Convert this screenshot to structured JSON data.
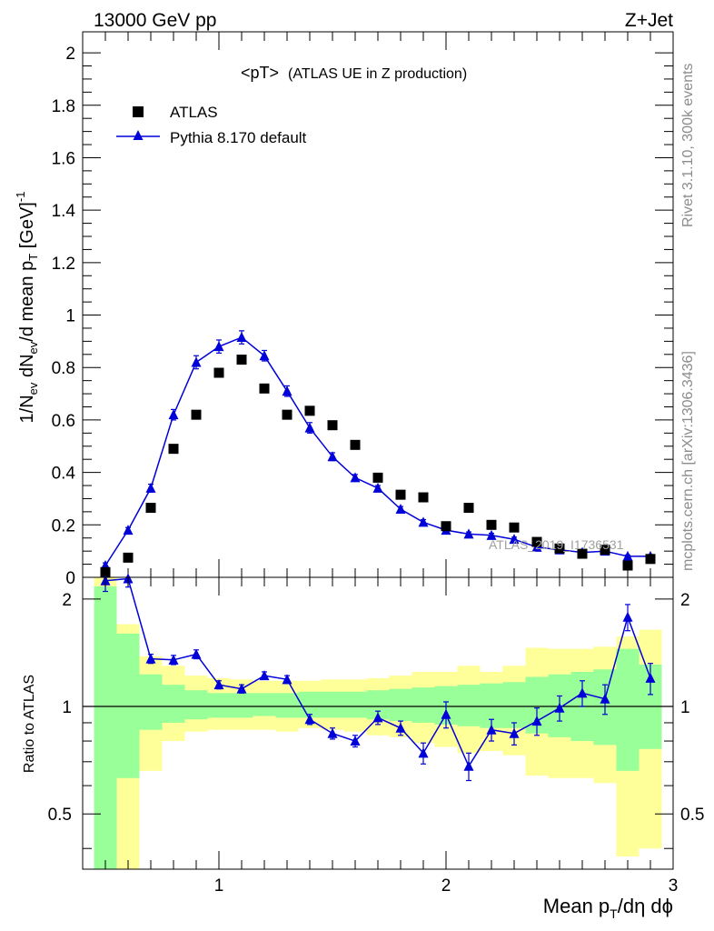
{
  "header": {
    "left": "13000 GeV pp",
    "right": "Z+Jet"
  },
  "side": {
    "top": "Rivet 3.1.10,  300k events",
    "bottom": "mcplots.cern.ch [arXiv:1306.3436]"
  },
  "watermark": "ATLAS_2019_I1736531",
  "colors": {
    "mc": "#0000d8",
    "data": "#000000",
    "band_outer": "#ffff99",
    "band_inner": "#99ff99"
  },
  "chart_data": [
    {
      "type": "scatter",
      "title": "<pT>",
      "subtitle": "(ATLAS UE in Z production)",
      "ylabel": "1/Nev dNev/d mean pT [GeV]-1",
      "xlim": [
        0.4,
        3.0
      ],
      "ylim": [
        0,
        2.08
      ],
      "yticks": [
        "0",
        "0.2",
        "0.4",
        "0.6",
        "0.8",
        "1",
        "1.2",
        "1.4",
        "1.6",
        "1.8",
        "2"
      ],
      "x": [
        0.5,
        0.6,
        0.7,
        0.8,
        0.9,
        1.0,
        1.1,
        1.2,
        1.3,
        1.4,
        1.5,
        1.6,
        1.7,
        1.8,
        1.9,
        2.0,
        2.1,
        2.2,
        2.3,
        2.4,
        2.5,
        2.6,
        2.7,
        2.8,
        2.9
      ],
      "series": [
        {
          "name": "ATLAS",
          "marker": "square",
          "values": [
            0.02,
            0.075,
            0.265,
            0.49,
            0.62,
            0.78,
            0.83,
            0.72,
            0.62,
            0.635,
            0.58,
            0.505,
            0.38,
            0.315,
            0.305,
            0.195,
            0.265,
            0.2,
            0.19,
            0.135,
            0.11,
            0.09,
            0.105,
            0.045,
            0.07
          ]
        },
        {
          "name": "Pythia 8.170 default",
          "marker": "triangle",
          "values": [
            0.045,
            0.18,
            0.34,
            0.62,
            0.82,
            0.88,
            0.915,
            0.845,
            0.71,
            0.57,
            0.46,
            0.38,
            0.34,
            0.26,
            0.21,
            0.18,
            0.165,
            0.16,
            0.145,
            0.115,
            0.105,
            0.095,
            0.1,
            0.08,
            0.08
          ],
          "errors": [
            0.01,
            0.01,
            0.015,
            0.02,
            0.025,
            0.025,
            0.025,
            0.02,
            0.02,
            0.02,
            0.015,
            0.012,
            0.01,
            0.01,
            0.01,
            0.008,
            0.008,
            0.008,
            0.008,
            0.007,
            0.006,
            0.006,
            0.006,
            0.005,
            0.005
          ]
        }
      ],
      "legend": "top-left"
    },
    {
      "type": "line",
      "ylabel": "Ratio to ATLAS",
      "xlabel": "Mean pT/dη dϕ",
      "xlim": [
        0.4,
        3.0
      ],
      "ylim": [
        0.35,
        2.3
      ],
      "xticks": [
        "1",
        "2",
        "3"
      ],
      "yticks": [
        "0.5",
        "1",
        "2"
      ],
      "x": [
        0.5,
        0.6,
        0.7,
        0.8,
        0.9,
        1.0,
        1.1,
        1.2,
        1.3,
        1.4,
        1.5,
        1.6,
        1.7,
        1.8,
        1.9,
        2.0,
        2.1,
        2.2,
        2.3,
        2.4,
        2.5,
        2.6,
        2.7,
        2.8,
        2.9
      ],
      "ratio": [
        2.25,
        2.28,
        1.36,
        1.35,
        1.4,
        1.15,
        1.12,
        1.22,
        1.19,
        0.92,
        0.84,
        0.8,
        0.93,
        0.87,
        0.74,
        0.95,
        0.68,
        0.86,
        0.84,
        0.91,
        0.99,
        1.09,
        1.05,
        1.78,
        1.2
      ],
      "ratio_err": [
        0.15,
        0.12,
        0.04,
        0.04,
        0.04,
        0.03,
        0.03,
        0.03,
        0.03,
        0.03,
        0.03,
        0.03,
        0.04,
        0.04,
        0.05,
        0.08,
        0.06,
        0.06,
        0.06,
        0.08,
        0.08,
        0.09,
        0.1,
        0.15,
        0.12
      ],
      "band_outer": [
        [
          0.3,
          2.3
        ],
        [
          0.3,
          1.7
        ],
        [
          0.66,
          1.38
        ],
        [
          0.8,
          1.3
        ],
        [
          0.85,
          1.22
        ],
        [
          0.86,
          1.2
        ],
        [
          0.86,
          1.19
        ],
        [
          0.86,
          1.18
        ],
        [
          0.85,
          1.18
        ],
        [
          0.87,
          1.18
        ],
        [
          0.86,
          1.19
        ],
        [
          0.85,
          1.19
        ],
        [
          0.83,
          1.2
        ],
        [
          0.82,
          1.22
        ],
        [
          0.79,
          1.25
        ],
        [
          0.77,
          1.25
        ],
        [
          0.74,
          1.3
        ],
        [
          0.75,
          1.25
        ],
        [
          0.73,
          1.3
        ],
        [
          0.64,
          1.46
        ],
        [
          0.63,
          1.45
        ],
        [
          0.63,
          1.45
        ],
        [
          0.61,
          1.47
        ],
        [
          0.38,
          1.57
        ],
        [
          0.4,
          1.64
        ]
      ],
      "band_inner": [
        [
          0.3,
          2.17
        ],
        [
          0.63,
          1.6
        ],
        [
          0.86,
          1.23
        ],
        [
          0.9,
          1.15
        ],
        [
          0.92,
          1.11
        ],
        [
          0.93,
          1.09
        ],
        [
          0.93,
          1.09
        ],
        [
          0.94,
          1.09
        ],
        [
          0.93,
          1.09
        ],
        [
          0.93,
          1.1
        ],
        [
          0.93,
          1.1
        ],
        [
          0.93,
          1.1
        ],
        [
          0.92,
          1.11
        ],
        [
          0.91,
          1.12
        ],
        [
          0.9,
          1.13
        ],
        [
          0.89,
          1.14
        ],
        [
          0.88,
          1.15
        ],
        [
          0.87,
          1.16
        ],
        [
          0.87,
          1.17
        ],
        [
          0.84,
          1.21
        ],
        [
          0.82,
          1.23
        ],
        [
          0.8,
          1.25
        ],
        [
          0.78,
          1.27
        ],
        [
          0.66,
          1.45
        ],
        [
          0.76,
          1.31
        ]
      ]
    }
  ]
}
